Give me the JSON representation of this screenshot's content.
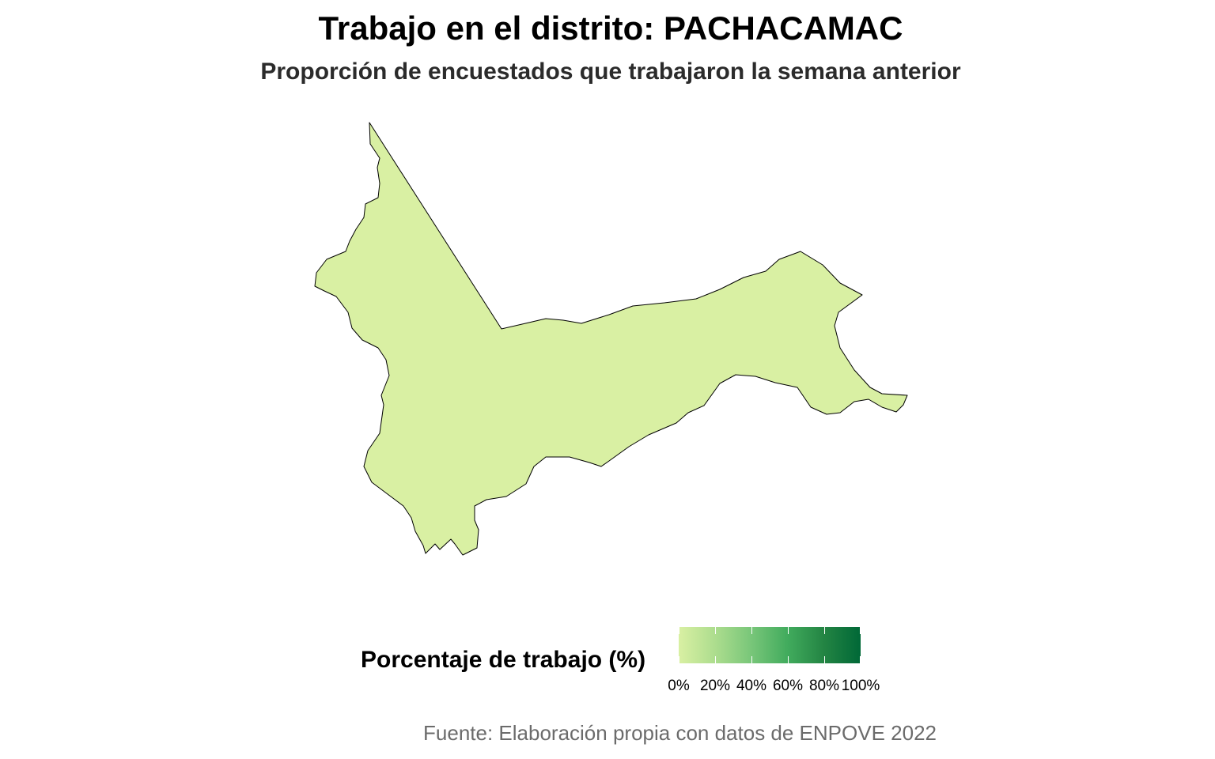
{
  "title": "Trabajo en el distrito: PACHACAMAC",
  "subtitle": "Proporción de encuestados que trabajaron la semana anterior",
  "caption": "Fuente: Elaboración propia con datos de ENPOVE 2022",
  "map": {
    "region_name": "PACHACAMAC",
    "fill_color": "#d9f0a3",
    "stroke_color": "#000000"
  },
  "legend": {
    "title": "Porcentaje de trabajo (%)",
    "gradient_colors": [
      "#d9f0a3",
      "#addd8e",
      "#78c679",
      "#41ab5d",
      "#238443",
      "#006837"
    ],
    "tick_labels": [
      "0%",
      "20%",
      "40%",
      "60%",
      "80%",
      "100%"
    ]
  }
}
